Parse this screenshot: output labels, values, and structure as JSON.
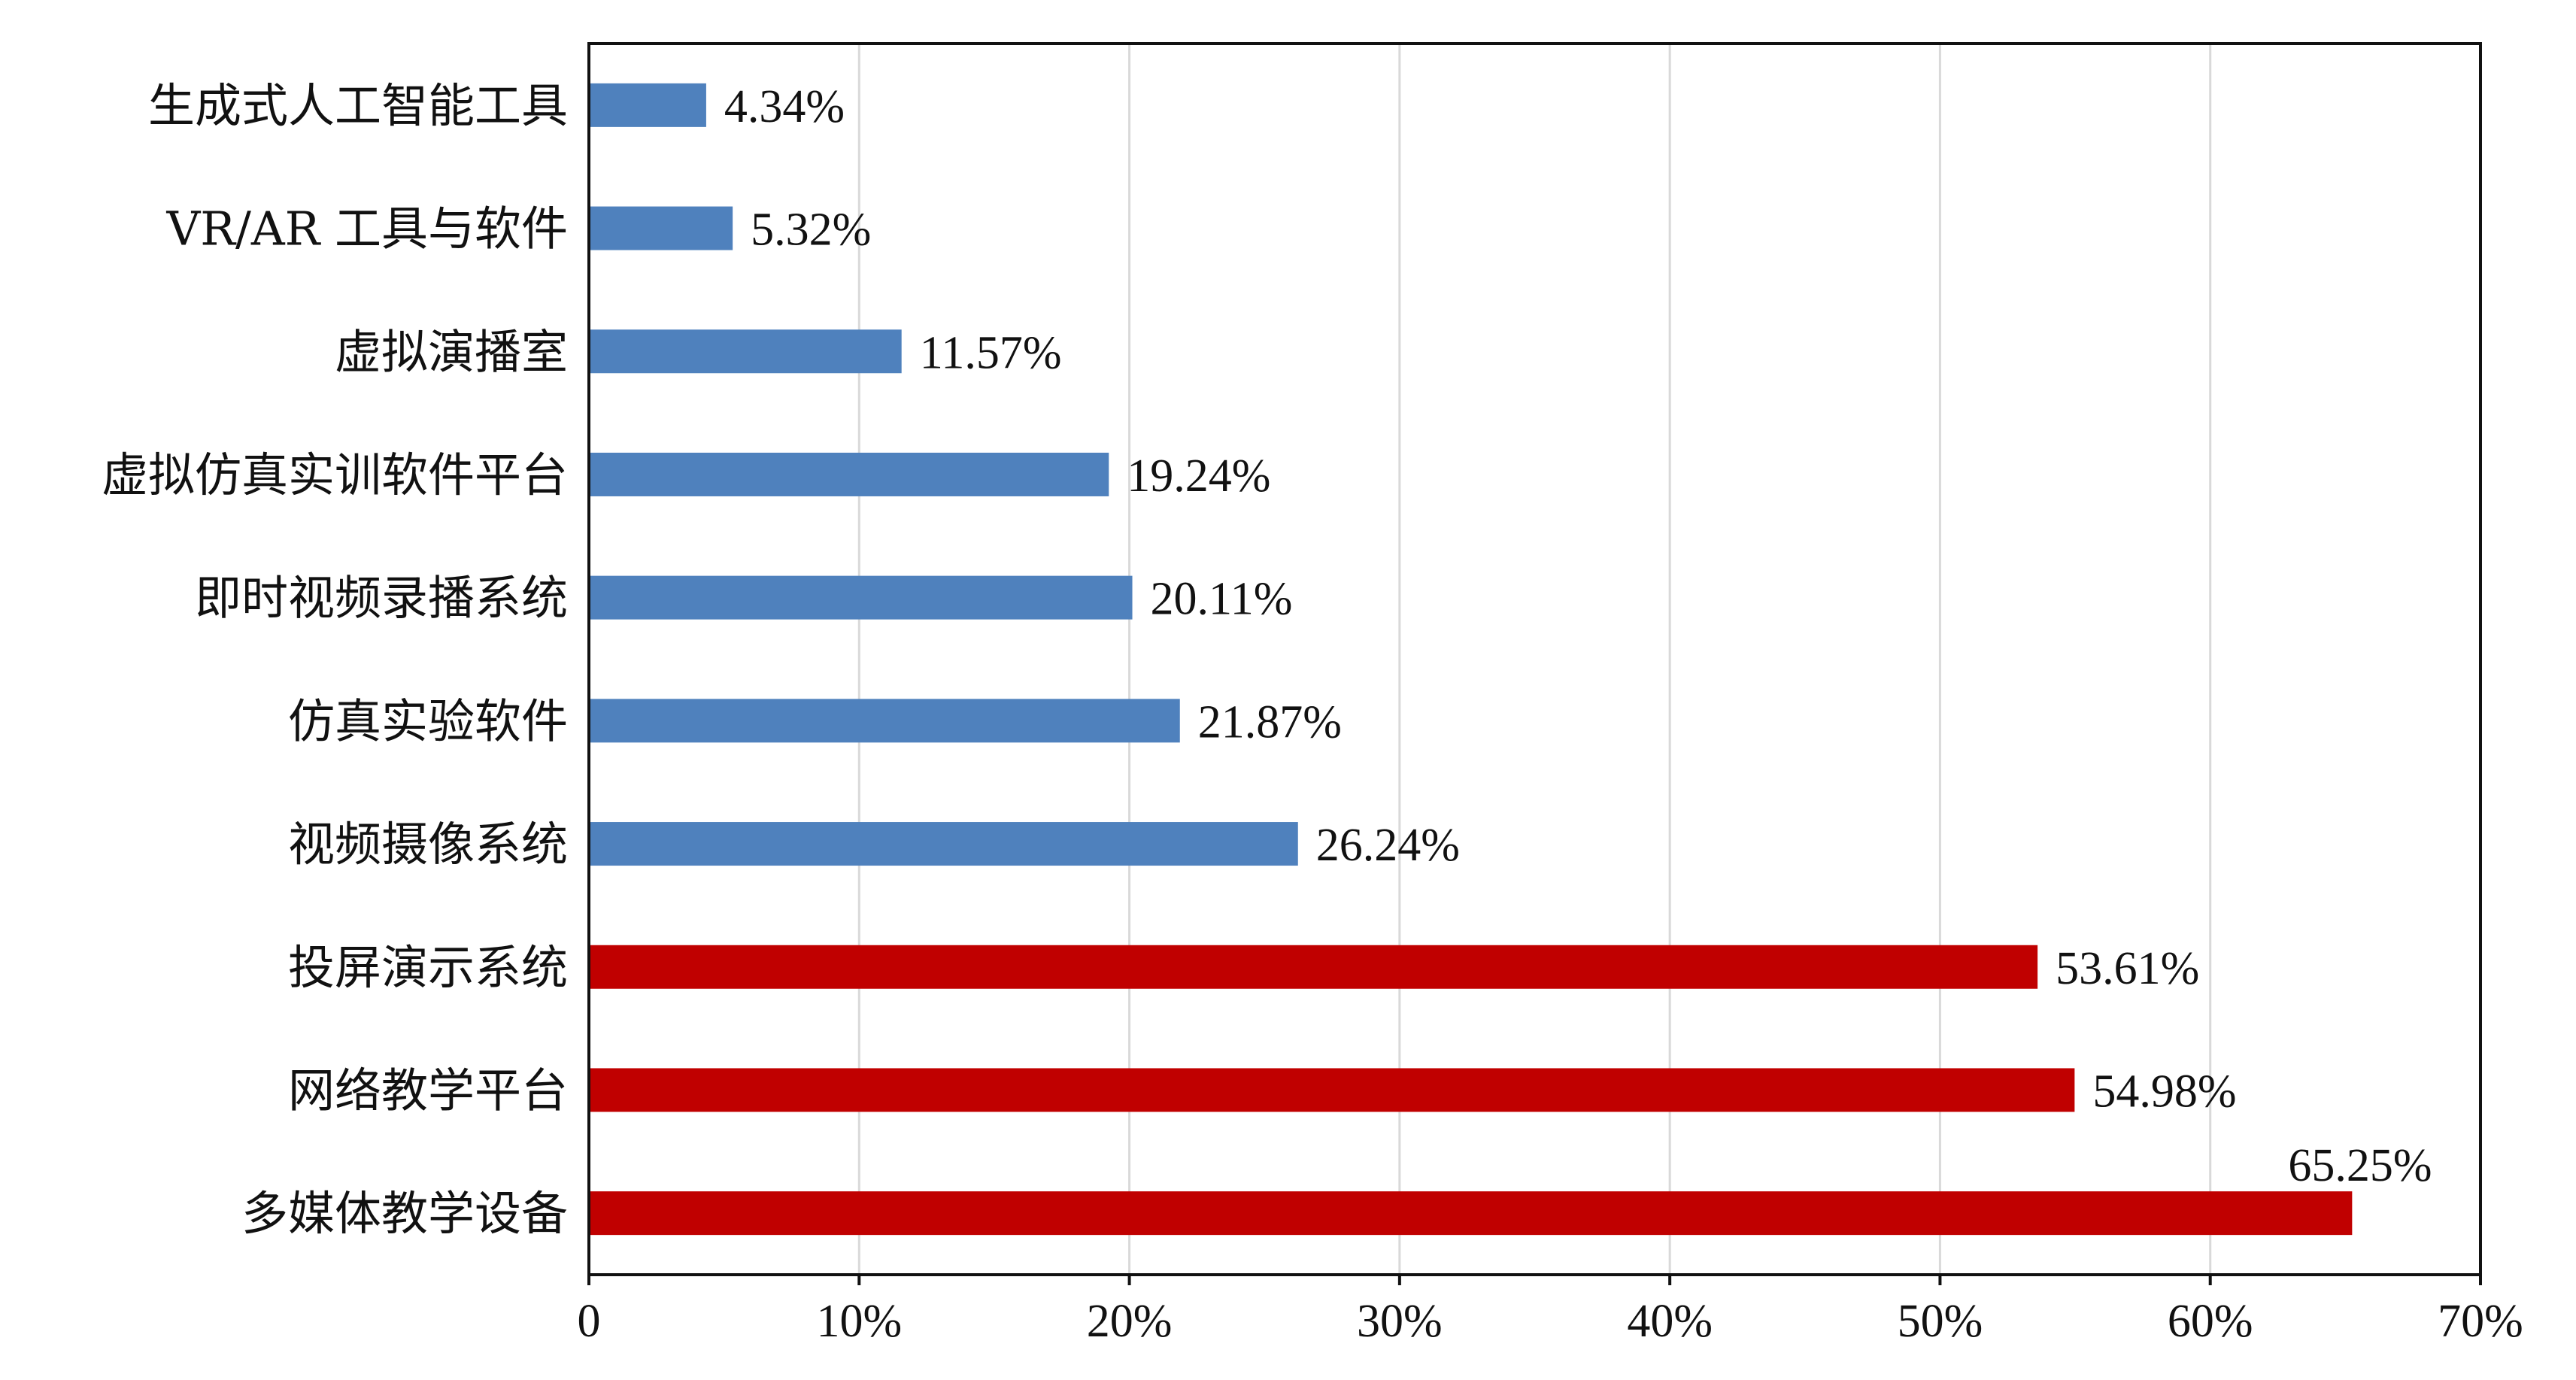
{
  "chart_data": {
    "type": "bar",
    "orientation": "horizontal",
    "categories": [
      "生成式人工智能工具",
      "VR/AR 工具与软件",
      "虚拟演播室",
      "虚拟仿真实训软件平台",
      "即时视频录播系统",
      "仿真实验软件",
      "视频摄像系统",
      "投屏演示系统",
      "网络教学平台",
      "多媒体教学设备"
    ],
    "values": [
      4.34,
      5.32,
      11.57,
      19.24,
      20.11,
      21.87,
      26.24,
      53.61,
      54.98,
      65.25
    ],
    "value_labels": [
      "4.34%",
      "5.32%",
      "11.57%",
      "19.24%",
      "20.11%",
      "21.87%",
      "26.24%",
      "53.61%",
      "54.98%",
      "65.25%"
    ],
    "bar_colors": [
      "#4f81bd",
      "#4f81bd",
      "#4f81bd",
      "#4f81bd",
      "#4f81bd",
      "#4f81bd",
      "#4f81bd",
      "#c00000",
      "#c00000",
      "#c00000"
    ],
    "xlim": [
      0,
      70
    ],
    "xticks": [
      0,
      10,
      20,
      30,
      40,
      50,
      60,
      70
    ],
    "xtick_labels": [
      "0",
      "10%",
      "20%",
      "30%",
      "40%",
      "50%",
      "60%",
      "70%"
    ],
    "title": "",
    "xlabel": "",
    "ylabel": "",
    "grid": "vertical",
    "legend": "none"
  }
}
